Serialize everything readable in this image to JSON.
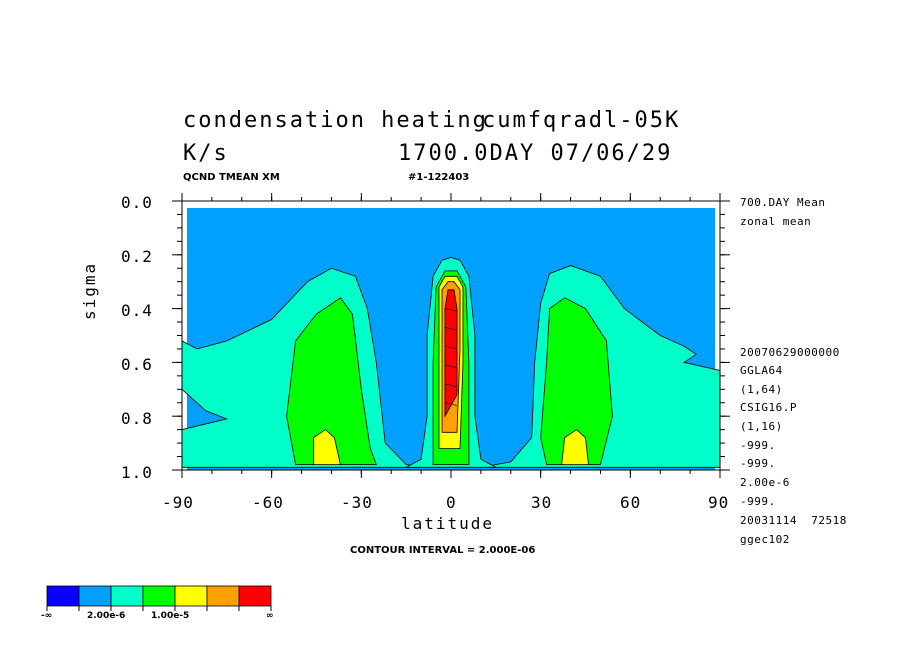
{
  "header": {
    "title_left": "condensation heating",
    "title_right": "cumfqradl-05K",
    "units": "K/s",
    "time": "1700.0DAY 07/06/29",
    "var_label": "QCND TMEAN XM",
    "run_id": "#1-122403",
    "contour_interval": "CONTOUR INTERVAL = 2.000E-06"
  },
  "side_info": {
    "line1": "700.DAY Mean",
    "line2": "zonal mean",
    "meta": [
      "20070629000000",
      "GGLA64",
      "(1,64)",
      "CSIG16.P",
      "(1,16)",
      "-999.",
      "-999.",
      "2.00e-6",
      "-999.",
      "20031114  72518",
      "ggec102"
    ]
  },
  "colorbar": {
    "colors": [
      "#0a00ff",
      "#00a0ff",
      "#00ffc8",
      "#00ff00",
      "#ffff00",
      "#ffa000",
      "#ff0000"
    ],
    "labels": [
      "-∞",
      "2.00e-6",
      "1.00e-5",
      "∞"
    ]
  },
  "chart_data": {
    "type": "heatmap",
    "title": "condensation heating",
    "xlabel": "latitude",
    "ylabel": "sigma",
    "xlim": [
      -90,
      90
    ],
    "ylim": [
      1.0,
      0.0
    ],
    "x_ticks": [
      "-90",
      "-60",
      "-30",
      "0",
      "30",
      "60",
      "90"
    ],
    "y_ticks": [
      "0.0",
      "0.2",
      "0.4",
      "0.6",
      "0.8",
      "1.0"
    ],
    "contour_interval": 2e-06,
    "levels": [
      0,
      2e-06,
      4e-06,
      6e-06,
      8e-06,
      1e-05,
      1.2e-05,
      1.4e-05
    ],
    "colors": [
      "#00a0ff",
      "#00ffc8",
      "#00ff00",
      "#ffff00",
      "#ffa000",
      "#ff0000"
    ],
    "features": [
      {
        "name": "equatorial maximum",
        "center_lat": 0,
        "sigma_range": [
          0.22,
          0.98
        ],
        "peak": "> 1.4e-5"
      },
      {
        "name": "southern midlatitude maximum",
        "center_lat": -42,
        "sigma_range": [
          0.3,
          0.99
        ],
        "peak": "8e-6"
      },
      {
        "name": "northern midlatitude maximum",
        "center_lat": 42,
        "sigma_range": [
          0.28,
          0.99
        ],
        "peak": "8e-6"
      }
    ]
  }
}
